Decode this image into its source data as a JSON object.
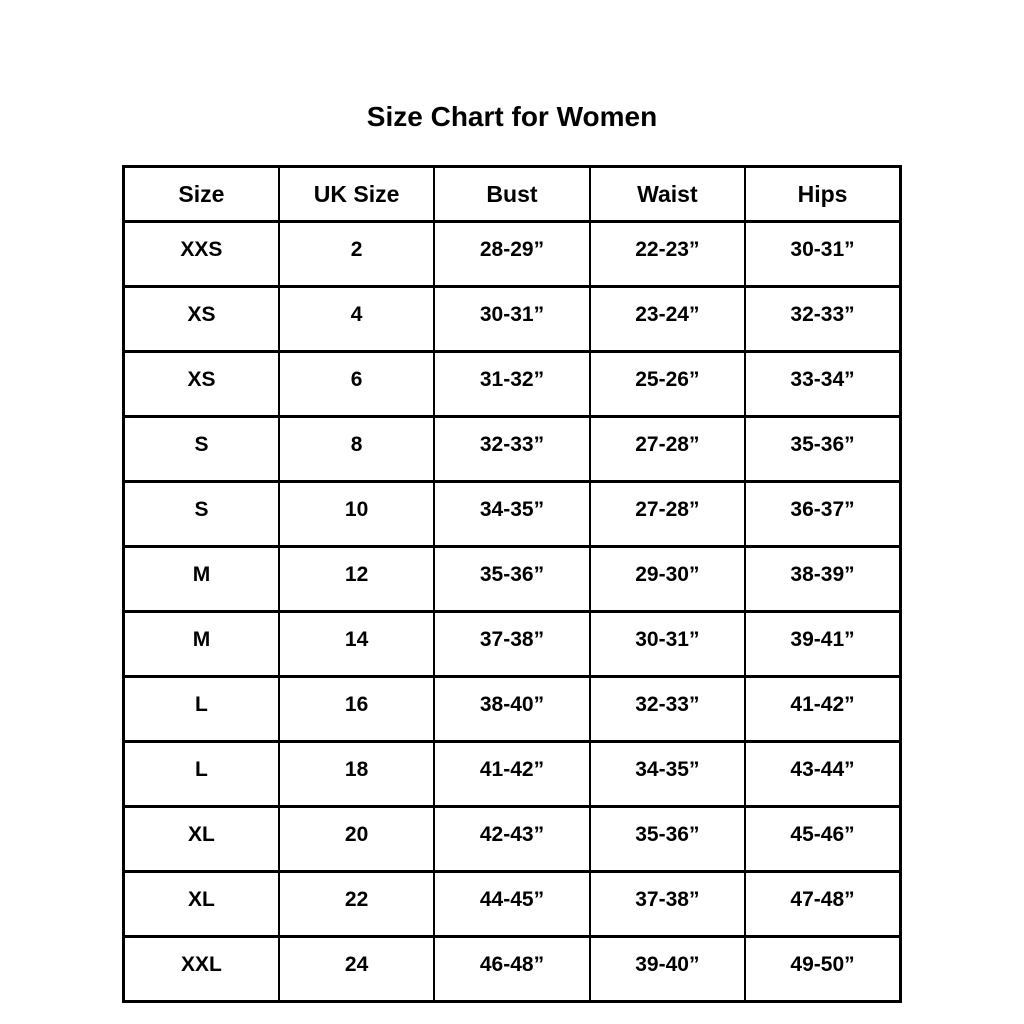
{
  "title": "Size Chart for Women",
  "table": {
    "headers": [
      "Size",
      "UK Size",
      "Bust",
      "Waist",
      "Hips"
    ],
    "rows": [
      [
        "XXS",
        "2",
        "28-29”",
        "22-23”",
        "30-31”"
      ],
      [
        "XS",
        "4",
        "30-31”",
        "23-24”",
        "32-33”"
      ],
      [
        "XS",
        "6",
        "31-32”",
        "25-26”",
        "33-34”"
      ],
      [
        "S",
        "8",
        "32-33”",
        "27-28”",
        "35-36”"
      ],
      [
        "S",
        "10",
        "34-35”",
        "27-28”",
        "36-37”"
      ],
      [
        "M",
        "12",
        "35-36”",
        "29-30”",
        "38-39”"
      ],
      [
        "M",
        "14",
        "37-38”",
        "30-31”",
        "39-41”"
      ],
      [
        "L",
        "16",
        "38-40”",
        "32-33”",
        "41-42”"
      ],
      [
        "L",
        "18",
        "41-42”",
        "34-35”",
        "43-44”"
      ],
      [
        "XL",
        "20",
        "42-43”",
        "35-36”",
        "45-46”"
      ],
      [
        "XL",
        "22",
        "44-45”",
        "37-38”",
        "47-48”"
      ],
      [
        "XXL",
        "24",
        "46-48”",
        "39-40”",
        "49-50”"
      ]
    ]
  },
  "chart_data": {
    "type": "table",
    "title": "Size Chart for Women",
    "columns": [
      "Size",
      "UK Size",
      "Bust",
      "Waist",
      "Hips"
    ],
    "rows": [
      [
        "XXS",
        "2",
        "28-29”",
        "22-23”",
        "30-31”"
      ],
      [
        "XS",
        "4",
        "30-31”",
        "23-24”",
        "32-33”"
      ],
      [
        "XS",
        "6",
        "31-32”",
        "25-26”",
        "33-34”"
      ],
      [
        "S",
        "8",
        "32-33”",
        "27-28”",
        "35-36”"
      ],
      [
        "S",
        "10",
        "34-35”",
        "27-28”",
        "36-37”"
      ],
      [
        "M",
        "12",
        "35-36”",
        "29-30”",
        "38-39”"
      ],
      [
        "M",
        "14",
        "37-38”",
        "30-31”",
        "39-41”"
      ],
      [
        "L",
        "16",
        "38-40”",
        "32-33”",
        "41-42”"
      ],
      [
        "L",
        "18",
        "41-42”",
        "34-35”",
        "43-44”"
      ],
      [
        "XL",
        "20",
        "42-43”",
        "35-36”",
        "45-46”"
      ],
      [
        "XL",
        "22",
        "44-45”",
        "37-38”",
        "47-48”"
      ],
      [
        "XXL",
        "24",
        "46-48”",
        "39-40”",
        "49-50”"
      ]
    ]
  },
  "colors": {
    "background": "#ffffff",
    "text": "#000000",
    "border": "#000000"
  }
}
